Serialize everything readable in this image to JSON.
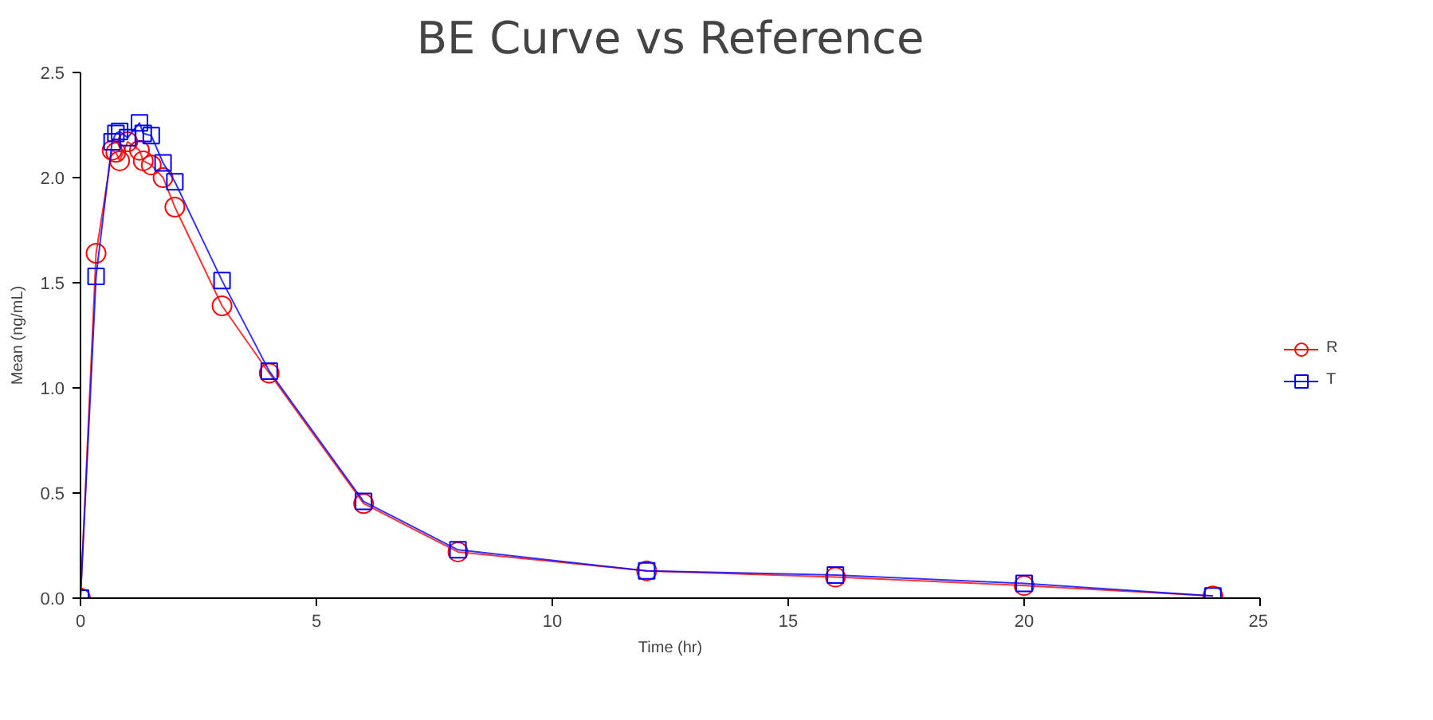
{
  "chart_data": {
    "type": "line",
    "title": "BE Curve vs Reference",
    "xlabel": "Time (hr)",
    "ylabel": "Mean (ng/mL)",
    "x": [
      0,
      0.33,
      0.67,
      0.75,
      0.83,
      1,
      1.25,
      1.33,
      1.5,
      1.75,
      2,
      3,
      4,
      6,
      8,
      12,
      16,
      20,
      24
    ],
    "series": [
      {
        "name": "R",
        "color": "#ff0000",
        "marker": "circle",
        "values": [
          0,
          1.64,
          2.13,
          2.12,
          2.08,
          2.17,
          2.13,
          2.08,
          2.06,
          2.0,
          1.86,
          1.39,
          1.07,
          0.45,
          0.22,
          0.13,
          0.1,
          0.06,
          0.01
        ]
      },
      {
        "name": "T",
        "color": "#0000ff",
        "marker": "square",
        "values": [
          0,
          1.53,
          2.17,
          2.21,
          2.22,
          2.19,
          2.26,
          2.21,
          2.2,
          2.07,
          1.98,
          1.51,
          1.08,
          0.46,
          0.23,
          0.13,
          0.11,
          0.07,
          0.01
        ]
      }
    ],
    "xlim": [
      0,
      25
    ],
    "ylim": [
      0,
      2.5
    ],
    "xticks": [
      0,
      5,
      10,
      15,
      20,
      25
    ],
    "yticks": [
      {
        "value": 0,
        "label": "0.0"
      },
      {
        "value": 0.5,
        "label": "0.5"
      },
      {
        "value": 1,
        "label": "1.0"
      },
      {
        "value": 1.5,
        "label": "1.5"
      },
      {
        "value": 2,
        "label": "2.0"
      },
      {
        "value": 2.5,
        "label": "2.5"
      }
    ],
    "grid": false,
    "legend": "right",
    "line_style": "solid"
  }
}
